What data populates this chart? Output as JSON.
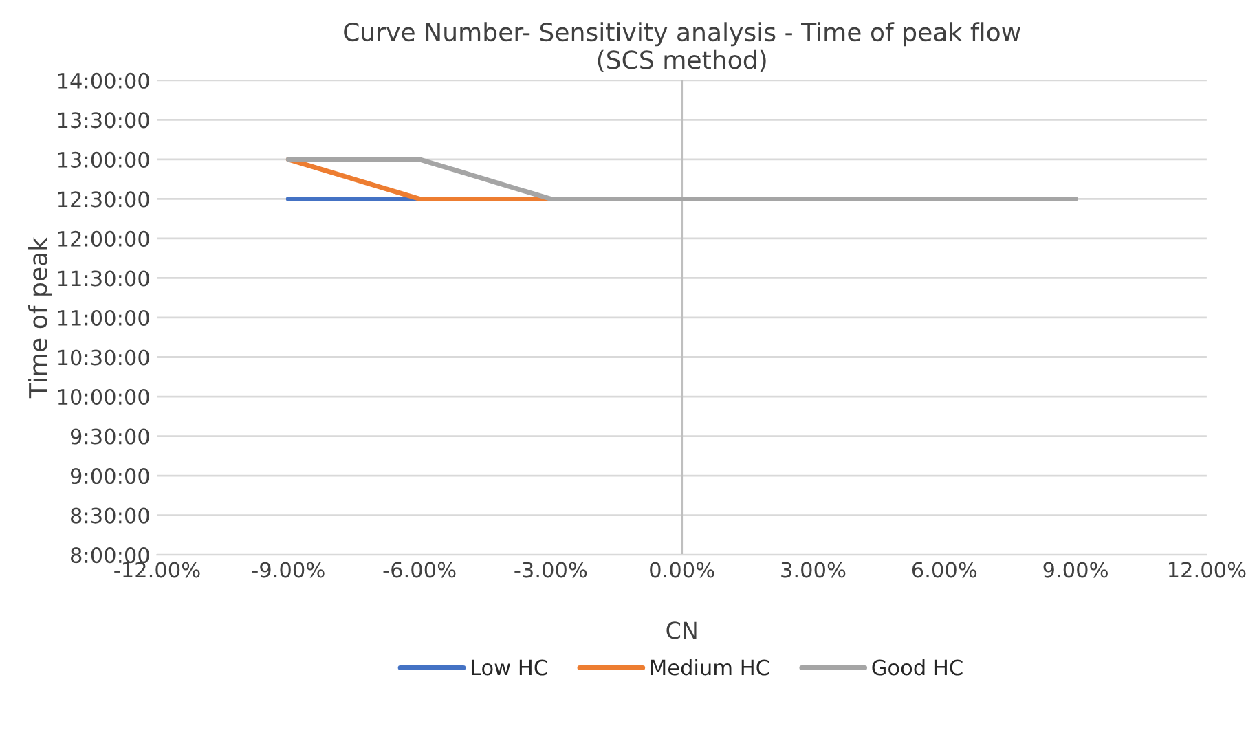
{
  "chart_data": {
    "type": "line",
    "title": "Curve Number- Sensitivity analysis - Time of peak flow\n(SCS method)",
    "xlabel": "CN",
    "ylabel": "Time of peak",
    "x": [
      -9,
      -6,
      -3,
      0,
      3,
      6,
      9
    ],
    "series": [
      {
        "name": "Low HC",
        "color": "#4472c4",
        "values": [
          12.5,
          12.5,
          null,
          null,
          null,
          null,
          null
        ]
      },
      {
        "name": "Medium HC",
        "color": "#ed7d31",
        "values": [
          13,
          12.5,
          12.5,
          null,
          null,
          null,
          null
        ]
      },
      {
        "name": "Good HC",
        "color": "#a5a5a5",
        "values": [
          13,
          13,
          12.5,
          12.5,
          12.5,
          12.5,
          12.5
        ]
      }
    ],
    "xlim": [
      -12,
      12
    ],
    "xticks": [
      {
        "value": -12,
        "label": "-12.00%"
      },
      {
        "value": -9,
        "label": "-9.00%"
      },
      {
        "value": -6,
        "label": "-6.00%"
      },
      {
        "value": -3,
        "label": "-3.00%"
      },
      {
        "value": 0,
        "label": "0.00%"
      },
      {
        "value": 3,
        "label": "3.00%"
      },
      {
        "value": 6,
        "label": "6.00%"
      },
      {
        "value": 9,
        "label": "9.00%"
      },
      {
        "value": 12,
        "label": "12.00%"
      }
    ],
    "ylim": [
      8,
      14
    ],
    "yticks": [
      {
        "value": 8,
        "label": "8:00:00"
      },
      {
        "value": 8.5,
        "label": "8:30:00"
      },
      {
        "value": 9,
        "label": "9:00:00"
      },
      {
        "value": 9.5,
        "label": "9:30:00"
      },
      {
        "value": 10,
        "label": "10:00:00"
      },
      {
        "value": 10.5,
        "label": "10:30:00"
      },
      {
        "value": 11,
        "label": "11:00:00"
      },
      {
        "value": 11.5,
        "label": "11:30:00"
      },
      {
        "value": 12,
        "label": "12:00:00"
      },
      {
        "value": 12.5,
        "label": "12:30:00"
      },
      {
        "value": 13,
        "label": "13:00:00"
      },
      {
        "value": 13.5,
        "label": "13:30:00"
      },
      {
        "value": 14,
        "label": "14:00:00"
      }
    ],
    "ref_lines": [
      {
        "axis": "x",
        "value": 0,
        "color": "#bfbfbf"
      }
    ],
    "grid": "y",
    "legend": "bottom",
    "marker": "none",
    "line_style": "solid"
  }
}
